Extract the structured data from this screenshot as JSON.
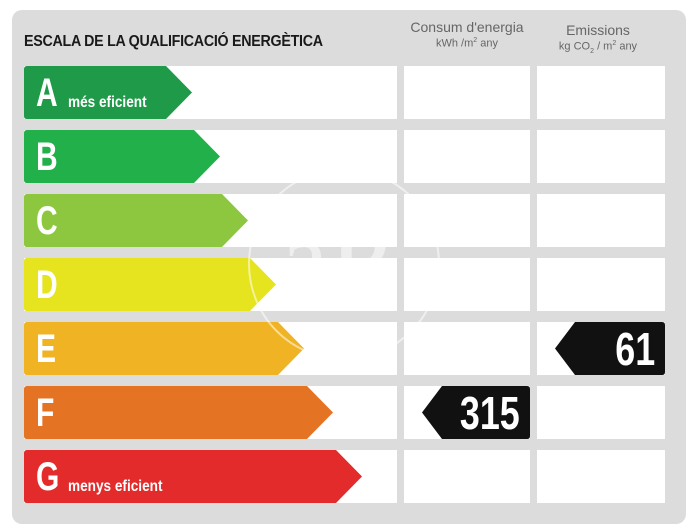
{
  "title": "ESCALA DE LA QUALIFICACIÓ ENERGÈTICA",
  "columns": {
    "consum": {
      "label": "Consum d'energia",
      "unit_pre": "kWh /m",
      "unit_sup": "2",
      "unit_post": " any"
    },
    "emissions": {
      "label": "Emissions",
      "unit_pre": "kg CO",
      "unit_sub": "2",
      "unit_mid": " / m",
      "unit_sup": "2",
      "unit_post": " any"
    }
  },
  "ratings": [
    {
      "letter": "A",
      "sublabel": "més eficient",
      "color": "#1f9a48"
    },
    {
      "letter": "B",
      "sublabel": "",
      "color": "#22b04b"
    },
    {
      "letter": "C",
      "sublabel": "",
      "color": "#8dc63f"
    },
    {
      "letter": "D",
      "sublabel": "",
      "color": "#e5e41f"
    },
    {
      "letter": "E",
      "sublabel": "",
      "color": "#f0b323"
    },
    {
      "letter": "F",
      "sublabel": "",
      "color": "#e57324"
    },
    {
      "letter": "G",
      "sublabel": "menys eficient",
      "color": "#e32b2b"
    }
  ],
  "consumption": {
    "value": "315",
    "rating": "F"
  },
  "emissions_value": {
    "value": "61",
    "rating": "E"
  },
  "watermark": "aP"
}
